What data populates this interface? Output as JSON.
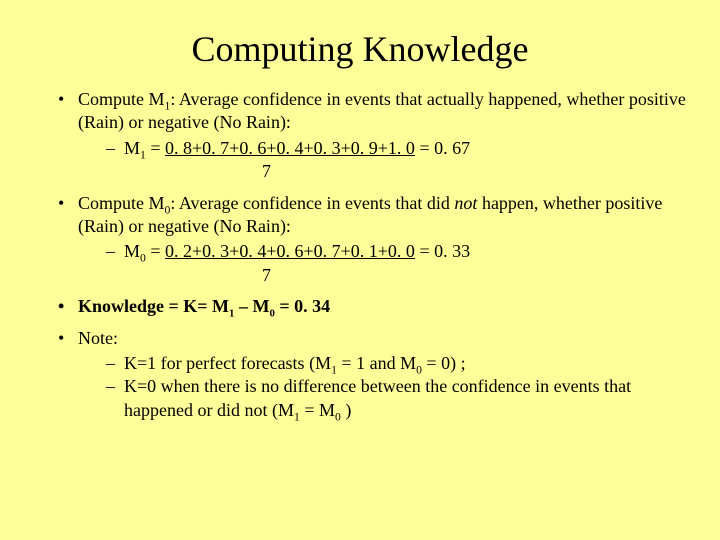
{
  "title": "Computing Knowledge",
  "b1": {
    "intro_a": "Compute M",
    "intro_sub": "1",
    "intro_b": ": Average confidence in events that actually happened, whether positive (Rain) or negative (No Rain):",
    "eq_a": "M",
    "eq_sub": "1",
    "eq_b": " = ",
    "eq_frac": "0. 8+0. 7+0. 6+0. 4+0. 3+0. 9+1. 0",
    "eq_c": " = 0. 67",
    "denom": "7"
  },
  "b2": {
    "intro_a": "Compute M",
    "intro_sub": "0",
    "intro_b": ": Average confidence in events that did ",
    "intro_not": "not",
    "intro_c": " happen, whether positive (Rain) or negative (No Rain):",
    "eq_a": "M",
    "eq_sub": "0",
    "eq_b": " = ",
    "eq_frac": "0. 2+0. 3+0. 4+0. 6+0. 7+0. 1+0. 0",
    "eq_c": " = 0. 33",
    "denom": "7"
  },
  "b3": {
    "a": "Knowledge",
    "b": " = K= M",
    "s1": "1",
    "c": " – M",
    "s0": "0",
    "d": " = 0. 34"
  },
  "b4": {
    "label": "Note:",
    "n1_a": "K=1 for perfect forecasts (",
    "n1_m1a": "M",
    "n1_m1s": "1",
    "n1_m1b": " = 1 and ",
    "n1_m0a": "M",
    "n1_m0s": "0",
    "n1_m0b": " = 0) ;",
    "n2_a": "K=0 when there is no difference between the confidence in events that happened or did not (",
    "n2_m1a": "M",
    "n2_m1s": "1",
    "n2_mid": " = M",
    "n2_m0s": "0",
    "n2_end": " )"
  }
}
